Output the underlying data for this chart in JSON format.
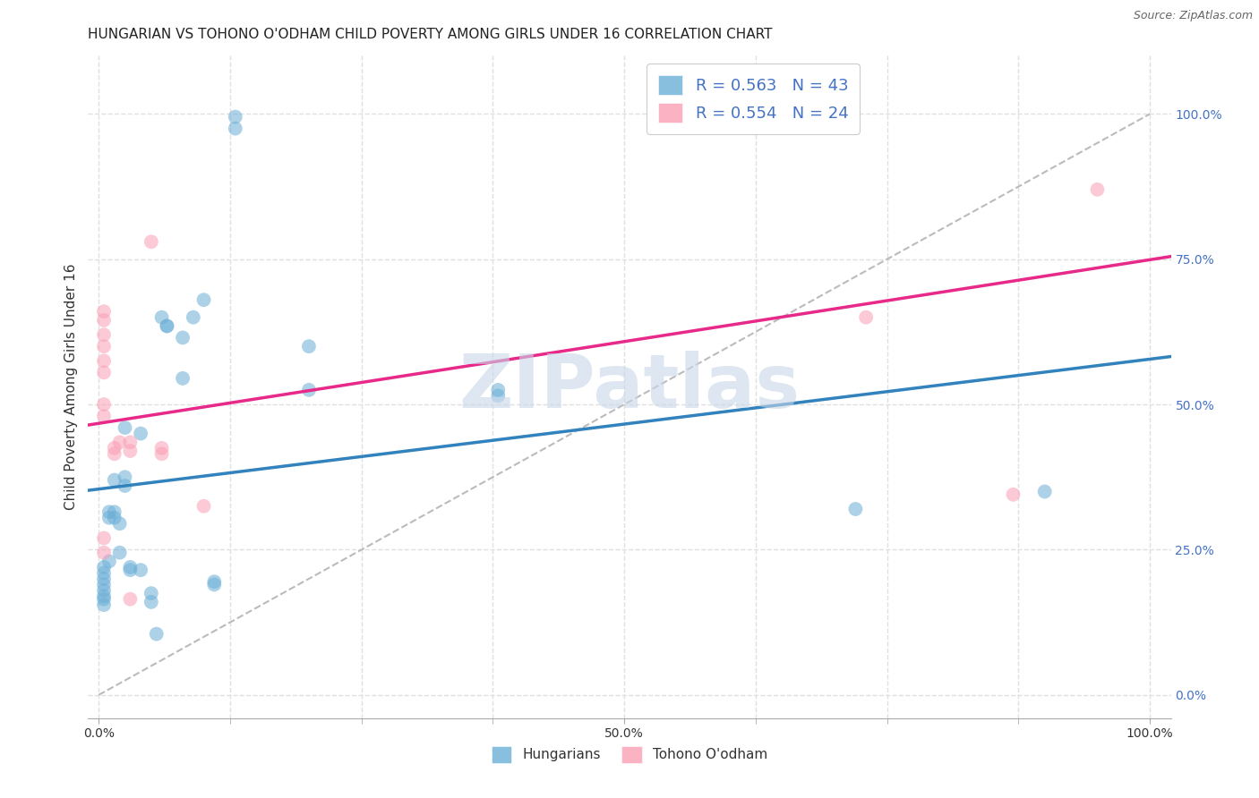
{
  "title": "HUNGARIAN VS TOHONO O'ODHAM CHILD POVERTY AMONG GIRLS UNDER 16 CORRELATION CHART",
  "source": "Source: ZipAtlas.com",
  "ylabel": "Child Poverty Among Girls Under 16",
  "xlabel": "",
  "blue_label": "Hungarians",
  "pink_label": "Tohono O'odham",
  "blue_R": "R = 0.563",
  "blue_N": "N = 43",
  "pink_R": "R = 0.554",
  "pink_N": "N = 24",
  "blue_color": "#6baed6",
  "pink_color": "#fa9fb5",
  "blue_line_color": "#3182bd",
  "pink_line_color": "#e7298a",
  "diagonal_color": "#bbbbbb",
  "blue_scatter": [
    [
      0.005,
      0.18
    ],
    [
      0.005,
      0.2
    ],
    [
      0.005,
      0.22
    ],
    [
      0.005,
      0.19
    ],
    [
      0.005,
      0.17
    ],
    [
      0.005,
      0.155
    ],
    [
      0.005,
      0.165
    ],
    [
      0.005,
      0.21
    ],
    [
      0.01,
      0.23
    ],
    [
      0.01,
      0.305
    ],
    [
      0.01,
      0.315
    ],
    [
      0.015,
      0.305
    ],
    [
      0.015,
      0.315
    ],
    [
      0.015,
      0.37
    ],
    [
      0.02,
      0.295
    ],
    [
      0.02,
      0.245
    ],
    [
      0.025,
      0.375
    ],
    [
      0.025,
      0.36
    ],
    [
      0.025,
      0.46
    ],
    [
      0.03,
      0.215
    ],
    [
      0.03,
      0.22
    ],
    [
      0.04,
      0.45
    ],
    [
      0.04,
      0.215
    ],
    [
      0.05,
      0.175
    ],
    [
      0.05,
      0.16
    ],
    [
      0.055,
      0.105
    ],
    [
      0.065,
      0.635
    ],
    [
      0.065,
      0.635
    ],
    [
      0.08,
      0.615
    ],
    [
      0.08,
      0.545
    ],
    [
      0.09,
      0.65
    ],
    [
      0.1,
      0.68
    ],
    [
      0.11,
      0.195
    ],
    [
      0.11,
      0.19
    ],
    [
      0.13,
      0.975
    ],
    [
      0.13,
      0.995
    ],
    [
      0.2,
      0.6
    ],
    [
      0.2,
      0.525
    ],
    [
      0.38,
      0.525
    ],
    [
      0.38,
      0.515
    ],
    [
      0.72,
      0.32
    ],
    [
      0.9,
      0.35
    ],
    [
      0.06,
      0.65
    ]
  ],
  "pink_scatter": [
    [
      0.005,
      0.27
    ],
    [
      0.005,
      0.245
    ],
    [
      0.005,
      0.5
    ],
    [
      0.005,
      0.48
    ],
    [
      0.005,
      0.555
    ],
    [
      0.005,
      0.575
    ],
    [
      0.005,
      0.62
    ],
    [
      0.005,
      0.6
    ],
    [
      0.005,
      0.645
    ],
    [
      0.005,
      0.66
    ],
    [
      0.015,
      0.425
    ],
    [
      0.015,
      0.415
    ],
    [
      0.02,
      0.435
    ],
    [
      0.03,
      0.165
    ],
    [
      0.03,
      0.42
    ],
    [
      0.03,
      0.435
    ],
    [
      0.05,
      0.78
    ],
    [
      0.06,
      0.415
    ],
    [
      0.06,
      0.425
    ],
    [
      0.1,
      0.325
    ],
    [
      0.67,
      1.0
    ],
    [
      0.73,
      0.65
    ],
    [
      0.87,
      0.345
    ],
    [
      0.95,
      0.87
    ]
  ],
  "xlim": [
    -0.01,
    1.02
  ],
  "ylim": [
    -0.04,
    1.1
  ],
  "xticks": [
    0.0,
    0.125,
    0.25,
    0.375,
    0.5,
    0.625,
    0.75,
    0.875,
    1.0
  ],
  "xticklabels": [
    "0.0%",
    "",
    "",
    "",
    "50.0%",
    "",
    "",
    "",
    "100.0%"
  ],
  "yticks_right": [
    0.0,
    0.25,
    0.5,
    0.75,
    1.0
  ],
  "yticklabels_right": [
    "0.0%",
    "25.0%",
    "50.0%",
    "75.0%",
    "100.0%"
  ],
  "grid_color": "#e0e0e0",
  "background_color": "#ffffff",
  "title_fontsize": 11,
  "label_fontsize": 11,
  "tick_fontsize": 10,
  "legend_fontsize": 13,
  "watermark_text": "ZIPatlas",
  "watermark_color": "#c8d8e8",
  "watermark_fontsize": 60
}
